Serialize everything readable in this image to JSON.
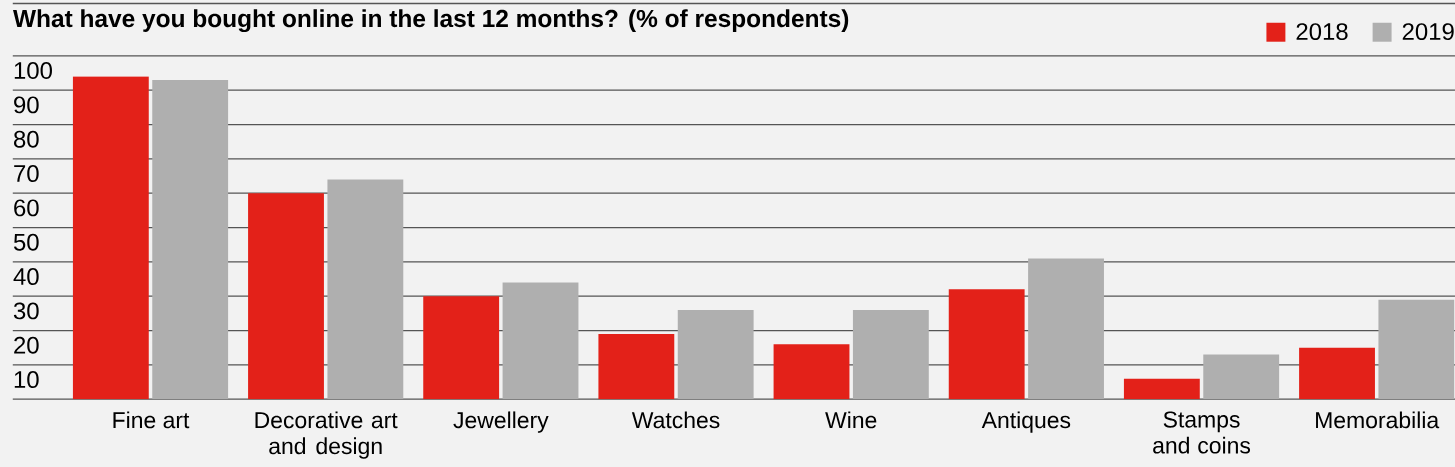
{
  "chart_data": {
    "type": "bar",
    "title": "What have you bought online in the last 12 months? (% of respondents)",
    "categories": [
      "Fine art",
      "Decorative art and design",
      "Jewellery",
      "Watches",
      "Wine",
      "Antiques",
      "Stamps and coins",
      "Memorabilia"
    ],
    "series": [
      {
        "name": "2018",
        "color": "#e32119",
        "values": [
          94,
          60,
          30,
          19,
          16,
          32,
          6,
          15
        ]
      },
      {
        "name": "2019",
        "color": "#afafaf",
        "values": [
          93,
          64,
          34,
          26,
          26,
          41,
          13,
          29
        ]
      }
    ],
    "ylim": [
      0,
      100
    ],
    "yticks": [
      {
        "value": 0,
        "label": null
      },
      10,
      20,
      30,
      40,
      50,
      60,
      70,
      80,
      90,
      100
    ],
    "grid": "y",
    "legend": "top right"
  }
}
